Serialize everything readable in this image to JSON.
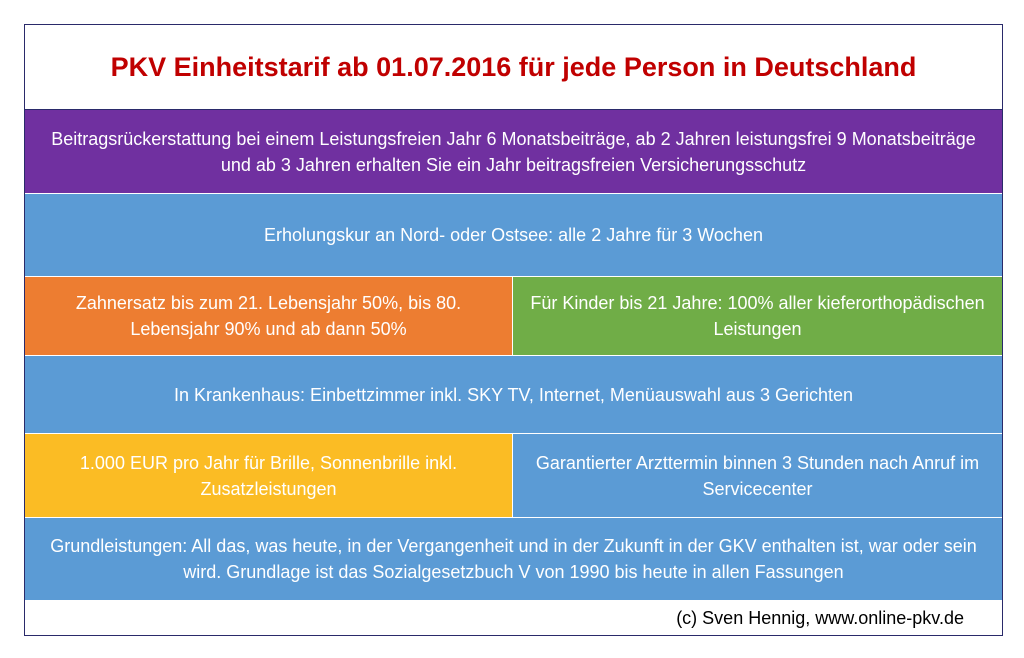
{
  "title": "PKV Einheitstarif ab 01.07.2016 für jede Person in Deutschland",
  "rows": {
    "refund": "Beitragsrückerstattung bei einem Leistungsfreien Jahr 6 Monatsbeiträge, ab 2 Jahren leistungsfrei 9 Monatsbeiträge und ab 3 Jahren erhalten Sie ein Jahr beitragsfreien Versicherungsschutz",
    "cure": "Erholungskur an Nord- oder Ostsee: alle 2 Jahre für 3 Wochen",
    "dental": "Zahnersatz bis zum 21. Lebensjahr 50%, bis 80. Lebensjahr 90% und ab dann 50%",
    "orthodontics": "Für Kinder bis 21 Jahre: 100% aller kieferorthopädischen Leistungen",
    "hospital": "In Krankenhaus:  Einbettzimmer inkl. SKY TV, Internet, Menüauswahl aus 3 Gerichten",
    "glasses": "1.000 EUR pro Jahr für Brille, Sonnenbrille inkl. Zusatzleistungen",
    "appointment": "Garantierter Arzttermin binnen 3 Stunden nach Anruf im Servicecenter",
    "basic": "Grundleistungen: All das, was heute, in der Vergangenheit und in der Zukunft in der GKV enthalten ist, war oder sein wird. Grundlage ist das Sozialgesetzbuch V von 1990 bis heute in allen Fassungen"
  },
  "footer": "(c) Sven Hennig, www.online-pkv.de",
  "colors": {
    "title": "#c00000",
    "purple": "#7030a0",
    "blue": "#5b9bd5",
    "orange": "#ed7d31",
    "green": "#70ad47",
    "yellow": "#fbbc24"
  }
}
